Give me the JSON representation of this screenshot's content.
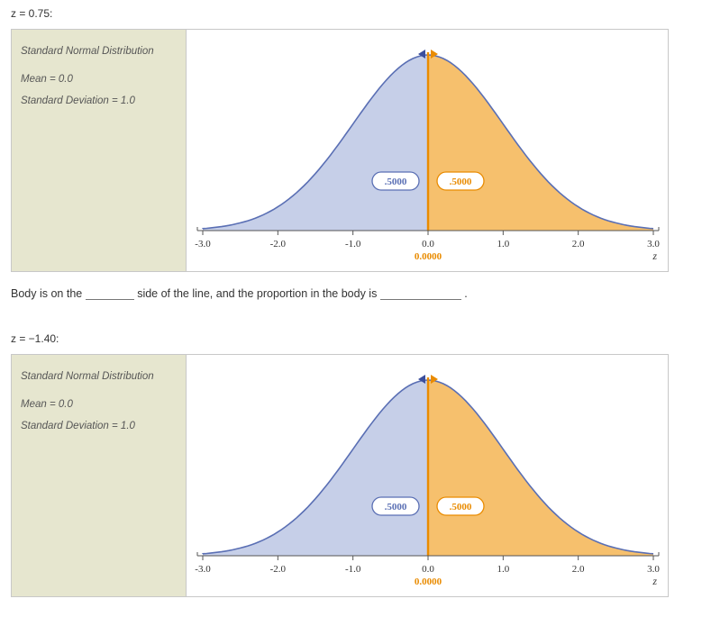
{
  "question1": {
    "label": "z = 0.75:",
    "sidebar": {
      "title": "Standard Normal Distribution",
      "mean_line": "Mean = 0.0",
      "sd_line": "Standard Deviation = 1.0"
    },
    "chart": {
      "background_color": "#ffffff",
      "curve_color": "#5a6fb4",
      "axis_color": "#555555",
      "left_fill": "#c6cfe8",
      "right_fill": "#f6c06d",
      "divider_color": "#e98b00",
      "left_label": {
        "text": ".5000",
        "text_color": "#5a6fb4",
        "border_color": "#5a6fb4"
      },
      "right_label": {
        "text": ".5000",
        "text_color": "#e98b00",
        "border_color": "#e98b00"
      },
      "below_label": {
        "text": "0.0000",
        "color": "#e98b00"
      },
      "axis_right_label": "z",
      "xticks": [
        "-3.0",
        "-2.0",
        "-1.0",
        "0.0",
        "1.0",
        "2.0",
        "3.0"
      ],
      "xtick_color": "#333333",
      "cursor_marker": {
        "left_arrow_color": "#3a4e9e",
        "right_arrow_color": "#e98b00"
      }
    }
  },
  "sentence": {
    "part1": "Body is on the ",
    "part2": " side of the line, and the proportion in the body is ",
    "part3": " ."
  },
  "question2": {
    "label": "z = −1.40:",
    "sidebar": {
      "title": "Standard Normal Distribution",
      "mean_line": "Mean = 0.0",
      "sd_line": "Standard Deviation = 1.0"
    },
    "chart": {
      "background_color": "#ffffff",
      "curve_color": "#5a6fb4",
      "axis_color": "#555555",
      "left_fill": "#c6cfe8",
      "right_fill": "#f6c06d",
      "divider_color": "#e98b00",
      "left_label": {
        "text": ".5000",
        "text_color": "#5a6fb4",
        "border_color": "#5a6fb4"
      },
      "right_label": {
        "text": ".5000",
        "text_color": "#e98b00",
        "border_color": "#e98b00"
      },
      "below_label": {
        "text": "0.0000",
        "color": "#e98b00"
      },
      "axis_right_label": "z",
      "xticks": [
        "-3.0",
        "-2.0",
        "-1.0",
        "0.0",
        "1.0",
        "2.0",
        "3.0"
      ],
      "xtick_color": "#333333",
      "cursor_marker": {
        "left_arrow_color": "#3a4e9e",
        "right_arrow_color": "#e98b00"
      }
    }
  }
}
